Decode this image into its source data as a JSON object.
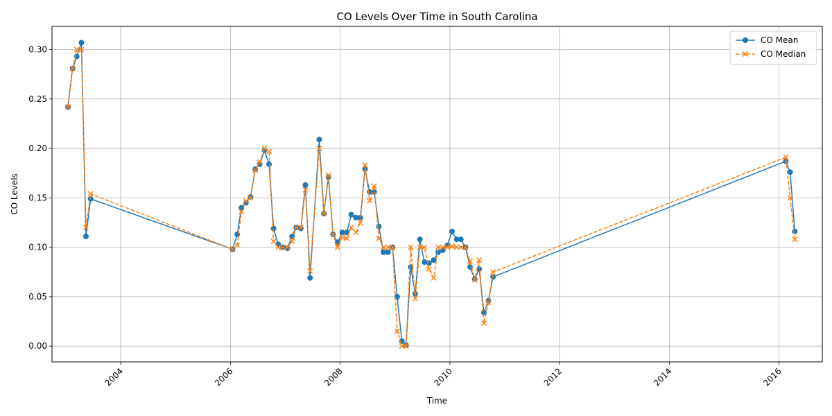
{
  "chart_data": {
    "type": "line",
    "title": "CO Levels Over Time in South Carolina",
    "xlabel": "Time",
    "ylabel": "CO Levels",
    "xlim": [
      "2002-10-01",
      "2016-10-15"
    ],
    "ylim": [
      -0.016,
      0.3235
    ],
    "x_ticks": [
      "2004",
      "2006",
      "2008",
      "2010",
      "2012",
      "2014",
      "2016"
    ],
    "y_ticks": [
      "0.00",
      "0.05",
      "0.10",
      "0.15",
      "0.20",
      "0.25",
      "0.30"
    ],
    "grid": true,
    "legend_position": "top-right",
    "x": [
      "2003-01-15",
      "2003-02-15",
      "2003-03-15",
      "2003-04-15",
      "2003-05-15",
      "2003-06-15",
      "2006-01-15",
      "2006-02-15",
      "2006-03-15",
      "2006-04-15",
      "2006-05-15",
      "2006-06-15",
      "2006-07-15",
      "2006-08-15",
      "2006-09-15",
      "2006-10-15",
      "2006-11-15",
      "2006-12-15",
      "2007-01-15",
      "2007-02-15",
      "2007-03-15",
      "2007-04-15",
      "2007-05-15",
      "2007-06-15",
      "2007-08-15",
      "2007-09-15",
      "2007-10-15",
      "2007-11-15",
      "2007-12-15",
      "2008-01-15",
      "2008-02-15",
      "2008-03-15",
      "2008-04-15",
      "2008-05-15",
      "2008-06-15",
      "2008-07-15",
      "2008-08-15",
      "2008-09-15",
      "2008-10-15",
      "2008-11-15",
      "2008-12-15",
      "2009-01-15",
      "2009-02-15",
      "2009-03-15",
      "2009-04-15",
      "2009-05-15",
      "2009-06-15",
      "2009-07-15",
      "2009-08-15",
      "2009-09-15",
      "2009-10-15",
      "2009-11-15",
      "2009-12-15",
      "2010-01-15",
      "2010-02-15",
      "2010-03-15",
      "2010-04-15",
      "2010-05-15",
      "2010-06-15",
      "2010-07-15",
      "2010-08-15",
      "2010-09-15",
      "2010-10-15",
      "2016-02-15",
      "2016-03-15",
      "2016-04-15"
    ],
    "series": [
      {
        "name": "CO Mean",
        "color": "#1f77b4",
        "style": "solid",
        "marker": "circle",
        "values": [
          0.242,
          0.281,
          0.293,
          0.307,
          0.111,
          0.149,
          0.098,
          0.113,
          0.14,
          0.145,
          0.151,
          0.179,
          0.184,
          0.198,
          0.184,
          0.119,
          0.103,
          0.1,
          0.099,
          0.111,
          0.12,
          0.119,
          0.163,
          0.069,
          0.209,
          0.134,
          0.171,
          0.113,
          0.105,
          0.115,
          0.115,
          0.133,
          0.13,
          0.13,
          0.179,
          0.156,
          0.156,
          0.121,
          0.095,
          0.095,
          0.1,
          0.05,
          0.005,
          0.001,
          0.08,
          0.053,
          0.108,
          0.085,
          0.084,
          0.087,
          0.095,
          0.097,
          0.102,
          0.116,
          0.108,
          0.108,
          0.1,
          0.08,
          0.068,
          0.078,
          0.034,
          0.046,
          0.07,
          0.187,
          0.176,
          0.116
        ]
      },
      {
        "name": "CO Median",
        "color": "#ff7f0e",
        "style": "dashed",
        "marker": "x",
        "values": [
          0.242,
          0.281,
          0.3,
          0.3,
          0.12,
          0.154,
          0.098,
          0.102,
          0.136,
          0.147,
          0.15,
          0.178,
          0.186,
          0.2,
          0.197,
          0.106,
          0.1,
          0.1,
          0.1,
          0.106,
          0.12,
          0.12,
          0.158,
          0.076,
          0.2,
          0.134,
          0.173,
          0.113,
          0.1,
          0.11,
          0.109,
          0.12,
          0.115,
          0.125,
          0.183,
          0.147,
          0.162,
          0.109,
          0.1,
          0.1,
          0.1,
          0.015,
          0.0,
          0.0,
          0.1,
          0.048,
          0.1,
          0.1,
          0.078,
          0.069,
          0.1,
          0.1,
          0.1,
          0.101,
          0.1,
          0.1,
          0.1,
          0.086,
          0.067,
          0.087,
          0.023,
          0.044,
          0.075,
          0.191,
          0.15,
          0.108
        ]
      }
    ]
  }
}
